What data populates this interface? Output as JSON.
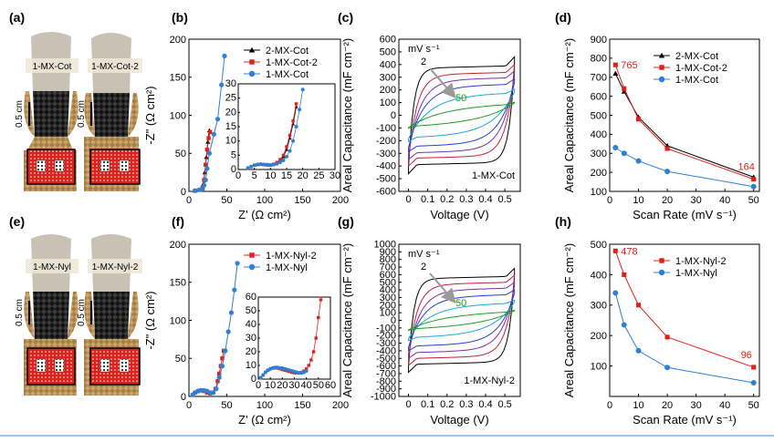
{
  "panel_labels": [
    "(a)",
    "(b)",
    "(c)",
    "(d)",
    "(e)",
    "(f)",
    "(g)",
    "(h)"
  ],
  "photos": {
    "a_left": "1-MX-Cot",
    "a_right": "1-MX-Cot-2",
    "e_left": "1-MX-Nyl",
    "e_right": "1-MX-Nyl-2",
    "scale_bar": "0.5 cm"
  },
  "colors": {
    "black": "#000000",
    "red": "#e0201b",
    "blue": "#2f7fd4",
    "green": "#1aa01a",
    "arrow": "#999999",
    "caption_line": "#9ec4e6"
  },
  "chart_data": [
    {
      "id": "b",
      "type": "scatter",
      "xlabel": "Z' (Ω cm²)",
      "ylabel": "-Z\" (Ω cm²)",
      "xlim": [
        0,
        200
      ],
      "ylim": [
        0,
        200
      ],
      "xticks": [
        0,
        50,
        100,
        150,
        200
      ],
      "yticks": [
        0,
        50,
        100,
        150,
        200
      ],
      "legend": "top-right",
      "series": [
        {
          "name": "2-MX-Cot",
          "color": "#000000",
          "marker": "triangle",
          "points": [
            [
              8,
              1
            ],
            [
              14,
              2
            ],
            [
              17,
              4
            ],
            [
              19,
              10
            ],
            [
              21,
              25
            ],
            [
              23,
              45
            ],
            [
              25,
              65
            ],
            [
              27,
              80
            ]
          ]
        },
        {
          "name": "1-MX-Cot-2",
          "color": "#e0201b",
          "marker": "square",
          "points": [
            [
              8,
              1
            ],
            [
              14,
              2
            ],
            [
              18,
              5
            ],
            [
              20,
              15
            ],
            [
              22,
              35
            ],
            [
              24,
              55
            ],
            [
              26,
              70
            ],
            [
              28,
              78
            ]
          ]
        },
        {
          "name": "1-MX-Cot",
          "color": "#2f7fd4",
          "marker": "circle",
          "points": [
            [
              8,
              1
            ],
            [
              14,
              2
            ],
            [
              18,
              3
            ],
            [
              20,
              8
            ],
            [
              22,
              15
            ],
            [
              24,
              30
            ],
            [
              27,
              50
            ],
            [
              33,
              75
            ],
            [
              38,
              95
            ],
            [
              43,
              140
            ],
            [
              47,
              178
            ]
          ]
        }
      ],
      "inset": {
        "xlim": [
          0,
          30
        ],
        "ylim": [
          0,
          30
        ],
        "xticks": [
          0,
          5,
          10,
          15,
          20,
          25,
          30
        ],
        "yticks": [
          0,
          5,
          10,
          15,
          20,
          25,
          30
        ],
        "series": [
          {
            "color": "#000000",
            "marker": "triangle",
            "points": [
              [
                3,
                0.5
              ],
              [
                4,
                1
              ],
              [
                5,
                1.5
              ],
              [
                6,
                1.7
              ],
              [
                7,
                1.8
              ],
              [
                8,
                1.7
              ],
              [
                9,
                1.6
              ],
              [
                10,
                1.5
              ],
              [
                11,
                1.8
              ],
              [
                12,
                2.2
              ],
              [
                13,
                3
              ],
              [
                14,
                4.5
              ],
              [
                15,
                7
              ],
              [
                16,
                11
              ],
              [
                17,
                16
              ],
              [
                18,
                22
              ]
            ]
          },
          {
            "color": "#e0201b",
            "marker": "square",
            "points": [
              [
                3,
                0.5
              ],
              [
                4,
                1
              ],
              [
                5,
                1.5
              ],
              [
                6,
                1.7
              ],
              [
                7,
                1.8
              ],
              [
                8,
                1.7
              ],
              [
                9,
                1.6
              ],
              [
                10,
                1.6
              ],
              [
                11,
                1.9
              ],
              [
                12,
                2.5
              ],
              [
                13,
                3.5
              ],
              [
                14,
                5
              ],
              [
                15,
                8
              ],
              [
                16,
                12
              ],
              [
                17,
                17
              ],
              [
                18,
                23
              ]
            ]
          },
          {
            "color": "#2f7fd4",
            "marker": "circle",
            "points": [
              [
                3,
                0.5
              ],
              [
                4,
                1
              ],
              [
                5,
                1.5
              ],
              [
                6,
                1.8
              ],
              [
                7,
                1.9
              ],
              [
                8,
                1.8
              ],
              [
                9,
                1.7
              ],
              [
                10,
                1.6
              ],
              [
                11,
                1.7
              ],
              [
                12,
                2
              ],
              [
                13,
                2.5
              ],
              [
                14,
                3.2
              ],
              [
                15,
                4.5
              ],
              [
                16,
                6.5
              ],
              [
                17,
                10
              ],
              [
                18,
                15
              ],
              [
                19,
                21
              ],
              [
                20,
                28
              ]
            ]
          }
        ]
      }
    },
    {
      "id": "c",
      "type": "line",
      "xlabel": "Voltage (V)",
      "ylabel": "Areal Capacitance (mF cm⁻²)",
      "xlim": [
        -0.05,
        0.58
      ],
      "ylim": [
        -600,
        600
      ],
      "xticks": [
        0,
        0.1,
        0.2,
        0.3,
        0.4,
        0.5
      ],
      "yticks": [
        -600,
        -500,
        -400,
        -300,
        -200,
        -100,
        0,
        100,
        200,
        300,
        400,
        500,
        600
      ],
      "annotations": {
        "unit": "mV s⁻¹",
        "low": "2",
        "high": "50",
        "sample": "1-MX-Cot"
      },
      "series": [
        {
          "color": "#000000",
          "amp": 440,
          "edge": 0.05
        },
        {
          "color": "#c41e3a",
          "amp": 380,
          "edge": 0.08
        },
        {
          "color": "#7a2fb8",
          "amp": 330,
          "edge": 0.11
        },
        {
          "color": "#2a3fd4",
          "amp": 270,
          "edge": 0.14
        },
        {
          "color": "#18a8d8",
          "amp": 190,
          "edge": 0.2
        },
        {
          "color": "#1aa01a",
          "amp": 90,
          "edge": 0.3
        }
      ]
    },
    {
      "id": "d",
      "type": "line",
      "xlabel": "Scan Rate (mV s⁻¹)",
      "ylabel": "Areal Capacitance (mF cm⁻²)",
      "xlim": [
        0,
        52
      ],
      "ylim": [
        100,
        900
      ],
      "xticks": [
        0,
        10,
        20,
        30,
        40,
        50
      ],
      "yticks": [
        100,
        200,
        300,
        400,
        500,
        600,
        700,
        800,
        900
      ],
      "legend": "top-right",
      "labels": {
        "top": "765",
        "bottom": "164"
      },
      "series": [
        {
          "name": "2-MX-Cot",
          "color": "#000000",
          "marker": "triangle",
          "x": [
            2,
            5,
            10,
            20,
            50
          ],
          "values": [
            720,
            625,
            490,
            340,
            175
          ]
        },
        {
          "name": "1-MX-Cot-2",
          "color": "#e0201b",
          "marker": "square",
          "x": [
            2,
            5,
            10,
            20,
            50
          ],
          "values": [
            765,
            640,
            480,
            325,
            164
          ]
        },
        {
          "name": "1-MX-Cot",
          "color": "#2f7fd4",
          "marker": "circle",
          "x": [
            2,
            5,
            10,
            20,
            50
          ],
          "values": [
            330,
            300,
            260,
            205,
            125
          ]
        }
      ]
    },
    {
      "id": "f",
      "type": "scatter",
      "xlabel": "Z' (Ω cm²)",
      "ylabel": "-Z\" (Ω cm²)",
      "xlim": [
        0,
        200
      ],
      "ylim": [
        0,
        200
      ],
      "xticks": [
        0,
        50,
        100,
        150,
        200
      ],
      "yticks": [
        0,
        50,
        100,
        150,
        200
      ],
      "legend": "top-right",
      "series": [
        {
          "name": "1-MX-Nyl-2",
          "color": "#e0201b",
          "marker": "square",
          "points": [
            [
              5,
              2
            ],
            [
              8,
              5
            ],
            [
              12,
              7
            ],
            [
              16,
              8
            ],
            [
              20,
              7
            ],
            [
              24,
              5
            ],
            [
              28,
              4
            ],
            [
              32,
              5
            ],
            [
              35,
              10
            ],
            [
              38,
              20
            ],
            [
              40,
              30
            ],
            [
              42,
              40
            ],
            [
              44,
              50
            ],
            [
              46,
              60
            ]
          ]
        },
        {
          "name": "1-MX-Nyl",
          "color": "#2f7fd4",
          "marker": "circle",
          "points": [
            [
              5,
              2
            ],
            [
              8,
              5
            ],
            [
              12,
              7
            ],
            [
              16,
              8
            ],
            [
              20,
              8
            ],
            [
              24,
              7
            ],
            [
              28,
              5
            ],
            [
              32,
              5
            ],
            [
              36,
              10
            ],
            [
              40,
              25
            ],
            [
              44,
              40
            ],
            [
              48,
              60
            ],
            [
              52,
              85
            ],
            [
              56,
              110
            ],
            [
              60,
              140
            ],
            [
              64,
              175
            ]
          ]
        }
      ],
      "inset": {
        "xlim": [
          0,
          60
        ],
        "ylim": [
          0,
          60
        ],
        "xticks": [
          0,
          10,
          20,
          30,
          40,
          50,
          60
        ],
        "yticks": [
          0,
          10,
          20,
          30,
          40,
          50,
          60
        ],
        "series": [
          {
            "color": "#e0201b",
            "marker": "square",
            "points": [
              [
                2,
                1
              ],
              [
                4,
                3
              ],
              [
                6,
                5
              ],
              [
                8,
                6.5
              ],
              [
                10,
                7.5
              ],
              [
                12,
                8
              ],
              [
                14,
                8.2
              ],
              [
                16,
                8
              ],
              [
                18,
                7.6
              ],
              [
                20,
                7
              ],
              [
                22,
                6.5
              ],
              [
                24,
                6
              ],
              [
                26,
                5.5
              ],
              [
                28,
                5
              ],
              [
                30,
                4.6
              ],
              [
                32,
                4.5
              ],
              [
                34,
                4.6
              ],
              [
                36,
                5
              ],
              [
                38,
                6
              ],
              [
                40,
                7.5
              ],
              [
                42,
                10
              ],
              [
                44,
                14
              ],
              [
                46,
                20
              ],
              [
                48,
                30
              ],
              [
                50,
                45
              ],
              [
                52,
                58
              ]
            ]
          },
          {
            "color": "#2f7fd4",
            "marker": "circle",
            "points": [
              [
                2,
                1
              ],
              [
                4,
                3
              ],
              [
                6,
                5
              ],
              [
                8,
                6.5
              ],
              [
                10,
                7.5
              ],
              [
                12,
                8.2
              ],
              [
                14,
                8.5
              ],
              [
                16,
                8.5
              ],
              [
                18,
                8.2
              ],
              [
                20,
                8
              ],
              [
                22,
                7.5
              ],
              [
                24,
                7
              ],
              [
                26,
                6.5
              ],
              [
                28,
                6
              ],
              [
                30,
                5.5
              ],
              [
                32,
                5
              ],
              [
                34,
                4.5
              ],
              [
                36,
                4.5
              ],
              [
                38,
                5
              ],
              [
                40,
                6
              ]
            ]
          }
        ]
      }
    },
    {
      "id": "g",
      "type": "line",
      "xlabel": "Voltage (V)",
      "ylabel": "Areal Capacitance (mF cm⁻²)",
      "xlim": [
        -0.05,
        0.58
      ],
      "ylim": [
        -1000,
        1000
      ],
      "xticks": [
        0,
        0.1,
        0.2,
        0.3,
        0.4,
        0.5
      ],
      "yticks": [
        -1000,
        -900,
        -800,
        -700,
        -600,
        -500,
        -400,
        -300,
        -200,
        -100,
        0,
        100,
        200,
        300,
        400,
        500,
        600,
        700,
        800,
        900,
        1000
      ],
      "annotations": {
        "unit": "mV s⁻¹",
        "low": "2",
        "high": "50",
        "sample": "1-MX-Nyl-2"
      },
      "series": [
        {
          "color": "#000000",
          "amp": 650,
          "edge": 0.05
        },
        {
          "color": "#c41e3a",
          "amp": 560,
          "edge": 0.08
        },
        {
          "color": "#7a2fb8",
          "amp": 470,
          "edge": 0.11
        },
        {
          "color": "#2a3fd4",
          "amp": 370,
          "edge": 0.14
        },
        {
          "color": "#18a8d8",
          "amp": 240,
          "edge": 0.2
        },
        {
          "color": "#1aa01a",
          "amp": 110,
          "edge": 0.3
        }
      ]
    },
    {
      "id": "h",
      "type": "line",
      "xlabel": "Scan Rate (mV s⁻¹)",
      "ylabel": "Areal Capacitance (mF cm⁻²)",
      "xlim": [
        0,
        52
      ],
      "ylim": [
        0,
        500
      ],
      "xticks": [
        0,
        10,
        20,
        30,
        40,
        50
      ],
      "yticks": [
        100,
        200,
        300,
        400,
        500
      ],
      "legend": "top-right",
      "labels": {
        "top": "478",
        "bottom": "96"
      },
      "series": [
        {
          "name": "1-MX-Nyl-2",
          "color": "#e0201b",
          "marker": "square",
          "x": [
            2,
            5,
            10,
            20,
            50
          ],
          "values": [
            478,
            400,
            300,
            195,
            96
          ]
        },
        {
          "name": "1-MX-Nyl",
          "color": "#2f7fd4",
          "marker": "circle",
          "x": [
            2,
            5,
            10,
            20,
            50
          ],
          "values": [
            340,
            235,
            150,
            95,
            45
          ]
        }
      ]
    }
  ]
}
